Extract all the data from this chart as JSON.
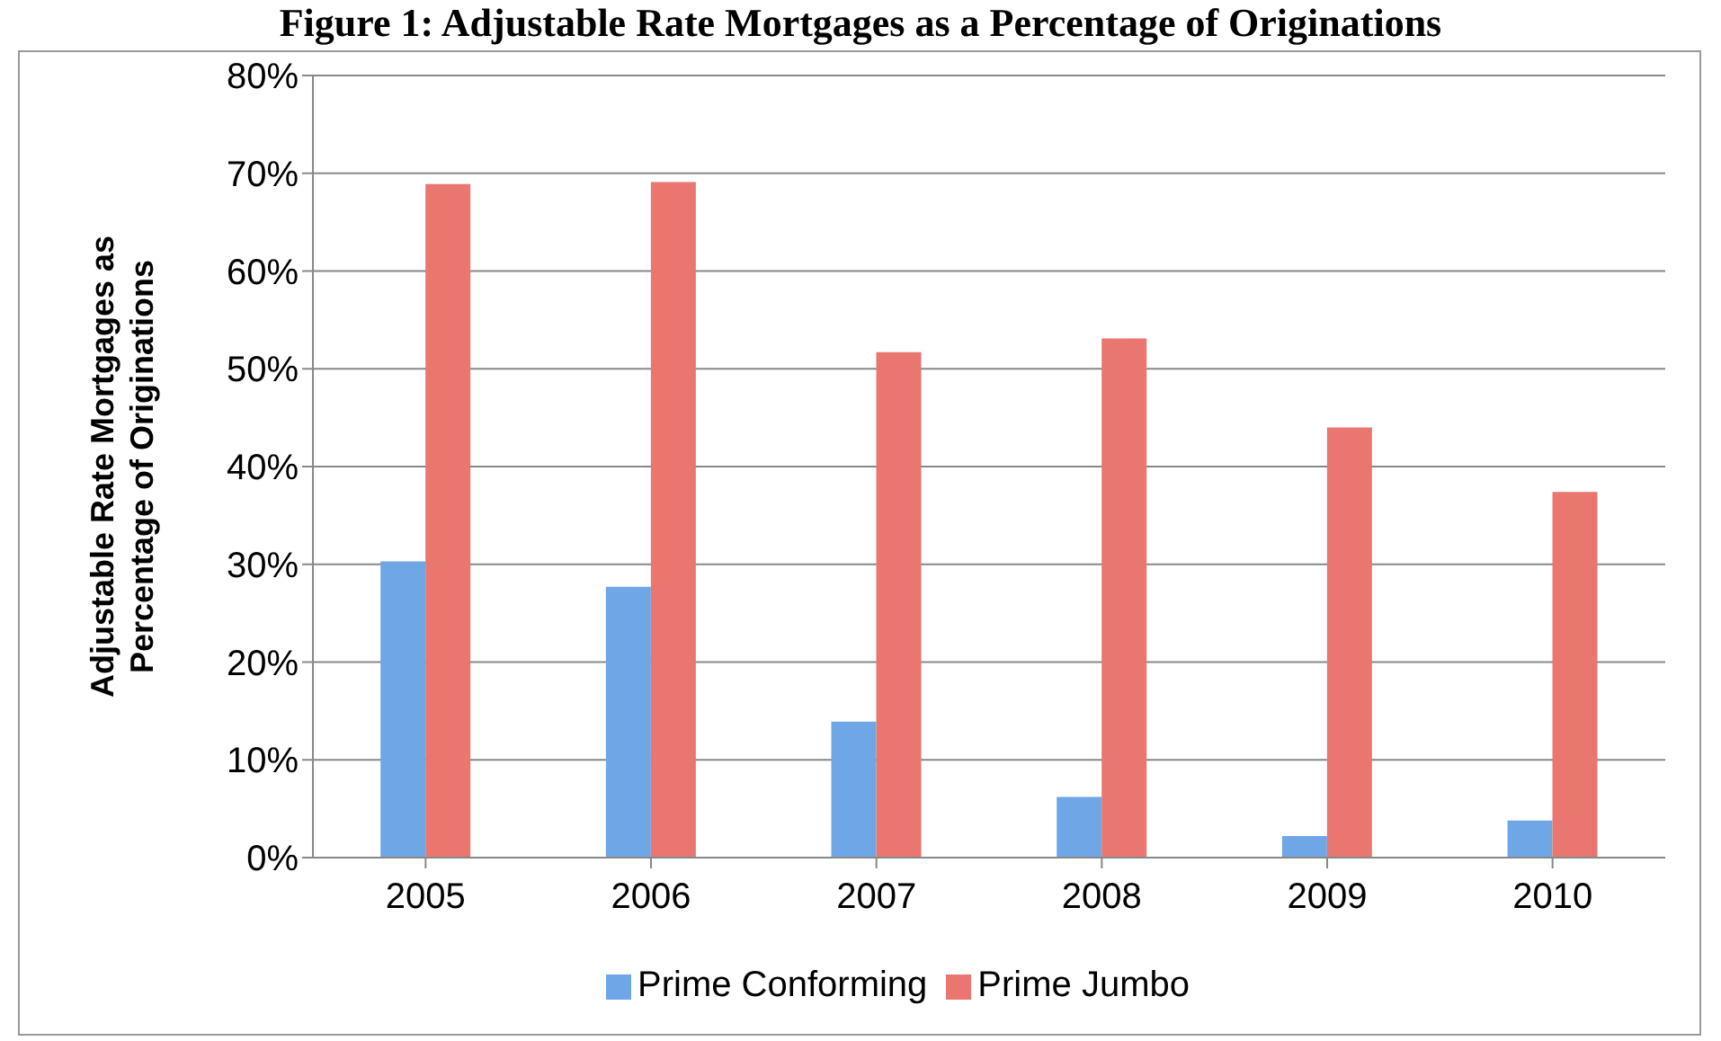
{
  "chart_data": {
    "type": "bar",
    "title": "Figure 1: Adjustable Rate Mortgages as a Percentage of Originations",
    "ylabel": "Adjustable Rate Mortgages as Percentage of Originations",
    "categories": [
      "2005",
      "2006",
      "2007",
      "2008",
      "2009",
      "2010"
    ],
    "series": [
      {
        "name": "Prime Conforming",
        "color": "#6fa6e6",
        "values": [
          30.3,
          27.7,
          13.9,
          6.2,
          2.2,
          3.8
        ]
      },
      {
        "name": "Prime Jumbo",
        "color": "#ea7670",
        "values": [
          68.9,
          69.1,
          51.7,
          53.1,
          44.0,
          37.4
        ]
      }
    ],
    "ylim": [
      0,
      80
    ],
    "yticks": [
      {
        "value": 0,
        "label": "0%"
      },
      {
        "value": 10,
        "label": "10%"
      },
      {
        "value": 20,
        "label": "20%"
      },
      {
        "value": 30,
        "label": "30%"
      },
      {
        "value": 40,
        "label": "40%"
      },
      {
        "value": 50,
        "label": "50%"
      },
      {
        "value": 60,
        "label": "60%"
      },
      {
        "value": 70,
        "label": "70%"
      },
      {
        "value": 80,
        "label": "80%"
      }
    ],
    "grid": "y",
    "legend": "bottom"
  }
}
